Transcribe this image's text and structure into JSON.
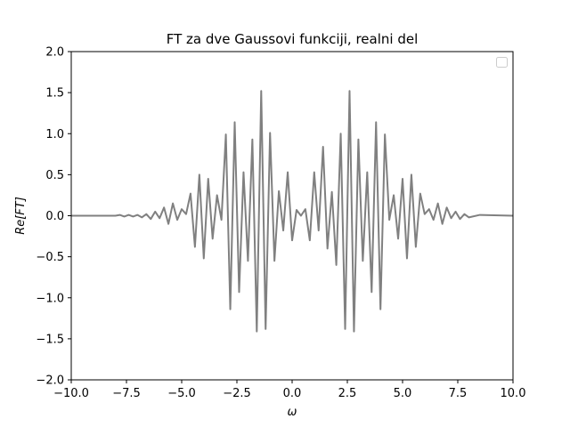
{
  "chart_data": {
    "type": "line",
    "title": "FT za dve Gaussovi funkciji, realni del",
    "xlabel": "ω",
    "ylabel": "Re[FT]",
    "xlim": [
      -10,
      10
    ],
    "ylim": [
      -2,
      2
    ],
    "xticks": [
      -10,
      -7.5,
      -5,
      -2.5,
      0,
      2.5,
      5,
      7.5,
      10
    ],
    "xtick_labels": [
      "−10.0",
      "−7.5",
      "−5.0",
      "−2.5",
      "0.0",
      "2.5",
      "5.0",
      "7.5",
      "10.0"
    ],
    "yticks": [
      -2,
      -1.5,
      -1,
      -0.5,
      0,
      0.5,
      1,
      1.5,
      2
    ],
    "ytick_labels": [
      "−2.0",
      "−1.5",
      "−1.0",
      "−0.5",
      "0.0",
      "0.5",
      "1.0",
      "1.5",
      "2.0"
    ],
    "grid": false,
    "legend": "top-right",
    "series": [
      {
        "color": "#808080",
        "x": [
          -10,
          -8.5,
          -8.0,
          -7.8,
          -7.6,
          -7.4,
          -7.2,
          -7.0,
          -6.8,
          -6.6,
          -6.4,
          -6.2,
          -6.0,
          -5.8,
          -5.6,
          -5.4,
          -5.2,
          -5.0,
          -4.8,
          -4.6,
          -4.4,
          -4.2,
          -4.0,
          -3.8,
          -3.6,
          -3.4,
          -3.2,
          -3.0,
          -2.8,
          -2.6,
          -2.4,
          -2.2,
          -2.0,
          -1.8,
          -1.6,
          -1.4,
          -1.2,
          -1.0,
          -0.8,
          -0.6,
          -0.4,
          -0.2,
          0.0,
          0.2,
          0.4,
          0.6,
          0.8,
          1.0,
          1.2,
          1.4,
          1.6,
          1.8,
          2.0,
          2.2,
          2.4,
          2.6,
          2.8,
          3.0,
          3.2,
          3.4,
          3.6,
          3.8,
          4.0,
          4.2,
          4.4,
          4.6,
          4.8,
          5.0,
          5.2,
          5.4,
          5.6,
          5.8,
          6.0,
          6.2,
          6.4,
          6.6,
          6.8,
          7.0,
          7.2,
          7.4,
          7.6,
          7.8,
          8.0,
          8.5,
          10
        ],
        "y": [
          0.0,
          0.0,
          0.0,
          0.01,
          -0.01,
          0.01,
          -0.01,
          0.01,
          -0.02,
          0.02,
          -0.04,
          0.05,
          -0.03,
          0.1,
          -0.1,
          0.15,
          -0.05,
          0.08,
          0.02,
          0.27,
          -0.38,
          0.5,
          -0.52,
          0.45,
          -0.28,
          0.25,
          -0.05,
          0.99,
          -1.14,
          1.14,
          -0.93,
          0.53,
          -0.55,
          0.93,
          -1.41,
          1.52,
          -1.38,
          1.01,
          -0.55,
          0.3,
          -0.18,
          0.53,
          -0.3,
          0.07,
          0.0,
          0.08,
          -0.3,
          0.53,
          -0.18,
          0.84,
          -0.4,
          0.29,
          -0.6,
          1.0,
          -1.38,
          1.52,
          -1.41,
          0.93,
          -0.55,
          0.53,
          -0.93,
          1.14,
          -1.14,
          0.99,
          -0.05,
          0.25,
          -0.28,
          0.45,
          -0.52,
          0.5,
          -0.38,
          0.27,
          0.02,
          0.08,
          -0.05,
          0.15,
          -0.1,
          0.1,
          -0.03,
          0.05,
          -0.04,
          0.02,
          -0.02,
          0.01,
          0.0
        ]
      }
    ]
  }
}
